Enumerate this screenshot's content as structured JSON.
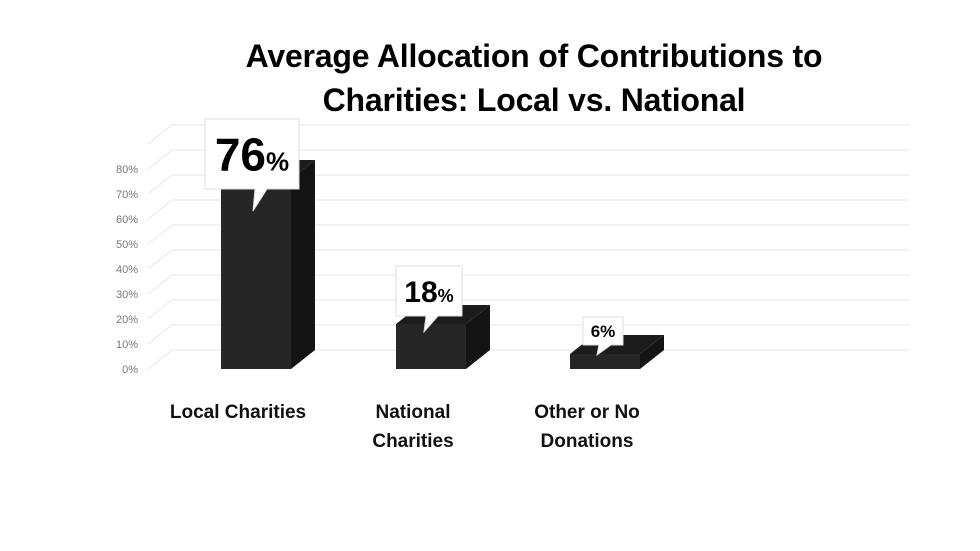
{
  "chart_data": {
    "type": "bar",
    "title": "Average Allocation of Contributions to Charities: Local vs. National",
    "title_lines": [
      "Average Allocation of Contributions to",
      "Charities: Local vs. National"
    ],
    "categories": [
      "Local Charities",
      "National Charities",
      "Other or No Donations"
    ],
    "category_lines": [
      [
        "Local Charities"
      ],
      [
        "National",
        "Charities"
      ],
      [
        "Other or No",
        "Donations"
      ]
    ],
    "values": [
      76,
      18,
      6
    ],
    "value_labels": [
      {
        "number": "76",
        "unit": "%"
      },
      {
        "number": "18",
        "unit": "%"
      },
      {
        "number": "6",
        "unit": "%"
      }
    ],
    "yticks": [
      "0%",
      "10%",
      "20%",
      "30%",
      "40%",
      "50%",
      "60%",
      "70%",
      "80%"
    ],
    "ylim": [
      0,
      80
    ],
    "grid": true,
    "style": "3d-bar",
    "colors": {
      "bar_front": "#262626",
      "bar_side": "#141414",
      "bar_top": "#1c1c1c",
      "grid": "#e6e6e6",
      "callout": "#ffffff"
    }
  }
}
